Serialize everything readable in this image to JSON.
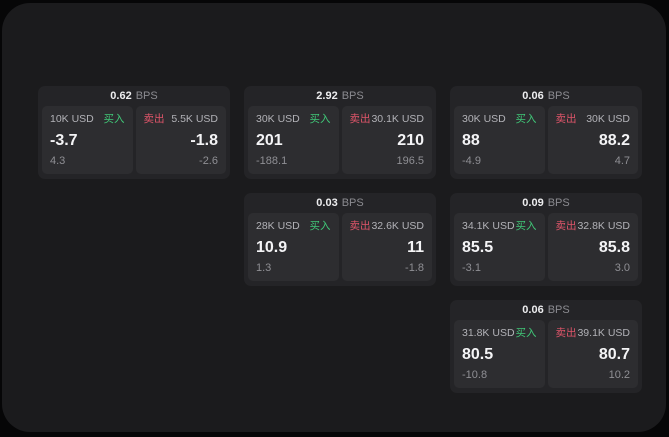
{
  "labels": {
    "bps_unit": "BPS",
    "buy": "买入",
    "sell": "卖出"
  },
  "colors": {
    "buy": "#40c878",
    "sell": "#e0556a",
    "page_bg": "#060607",
    "panel_bg": "#1b1b1d",
    "card_bg": "#242427",
    "tile_bg": "#2d2d30"
  },
  "cards": [
    {
      "bps": "0.62",
      "buy": {
        "size": "10K USD",
        "price": "-3.7",
        "sub": "4.3"
      },
      "sell": {
        "size": "5.5K USD",
        "price": "-1.8",
        "sub": "-2.6"
      }
    },
    {
      "bps": "2.92",
      "buy": {
        "size": "30K USD",
        "price": "201",
        "sub": "-188.1"
      },
      "sell": {
        "size": "30.1K USD",
        "price": "210",
        "sub": "196.5"
      }
    },
    {
      "bps": "0.06",
      "buy": {
        "size": "30K USD",
        "price": "88",
        "sub": "-4.9"
      },
      "sell": {
        "size": "30K USD",
        "price": "88.2",
        "sub": "4.7"
      }
    },
    {
      "bps": "0.03",
      "buy": {
        "size": "28K USD",
        "price": "10.9",
        "sub": "1.3"
      },
      "sell": {
        "size": "32.6K USD",
        "price": "11",
        "sub": "-1.8"
      }
    },
    {
      "bps": "0.09",
      "buy": {
        "size": "34.1K USD",
        "price": "85.5",
        "sub": "-3.1"
      },
      "sell": {
        "size": "32.8K USD",
        "price": "85.8",
        "sub": "3.0"
      }
    },
    {
      "bps": "0.06",
      "buy": {
        "size": "31.8K USD",
        "price": "80.5",
        "sub": "-10.8"
      },
      "sell": {
        "size": "39.1K USD",
        "price": "80.7",
        "sub": "10.2"
      }
    }
  ]
}
